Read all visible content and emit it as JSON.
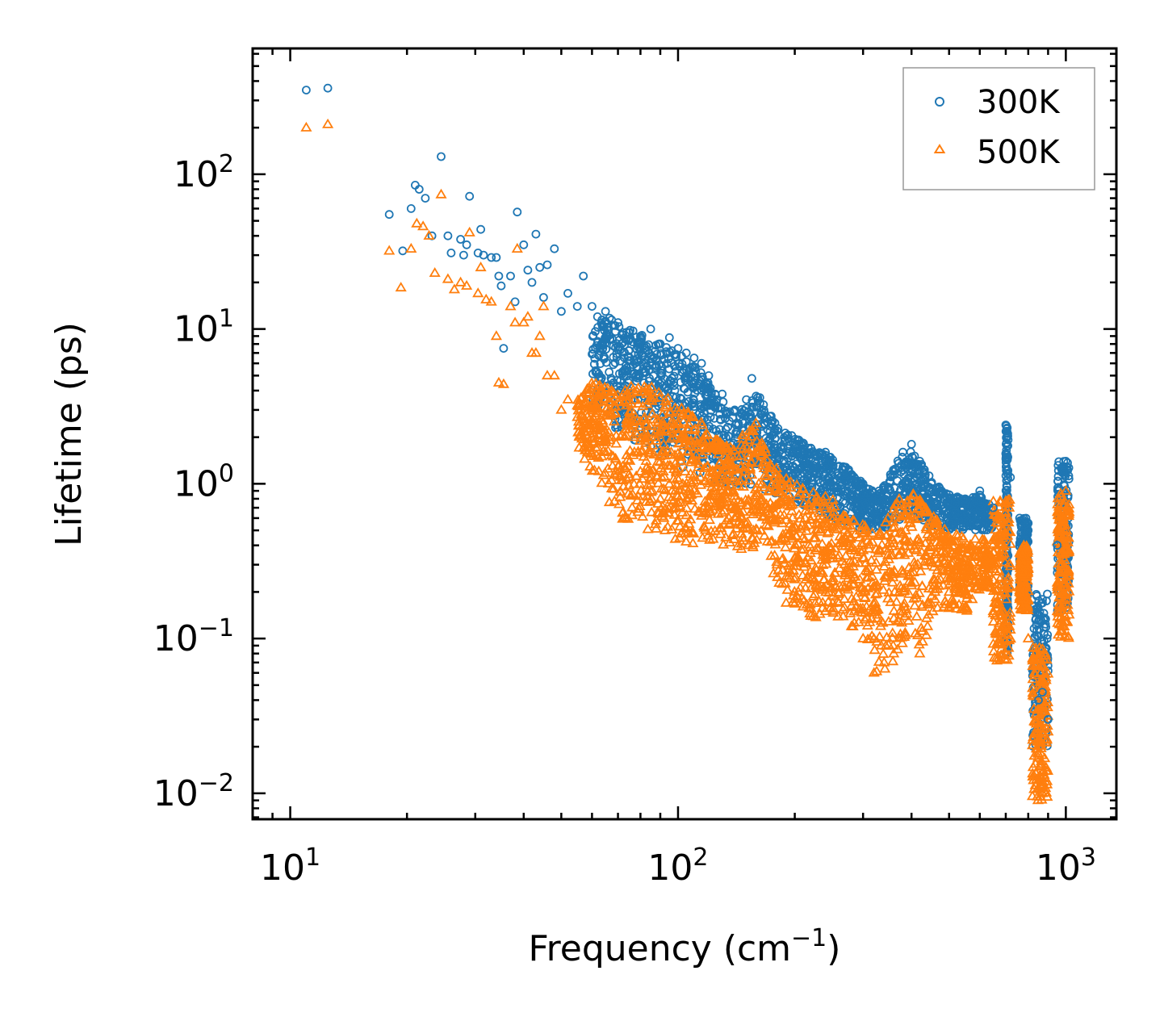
{
  "chart_data": {
    "type": "scatter",
    "title": "",
    "xlabel": "Frequency (cm",
    "xlabel_sup": "−1",
    "xlabel_close": ")",
    "ylabel": "Lifetime (ps)",
    "x_scale": "log",
    "y_scale": "log",
    "xlim": [
      8,
      1350
    ],
    "ylim": [
      0.0068,
      650
    ],
    "x_ticks": [
      {
        "value": 10,
        "base": "10",
        "exp": "1"
      },
      {
        "value": 100,
        "base": "10",
        "exp": "2"
      },
      {
        "value": 1000,
        "base": "10",
        "exp": "3"
      }
    ],
    "y_ticks": [
      {
        "value": 0.01,
        "base": "10",
        "exp": "−2"
      },
      {
        "value": 0.1,
        "base": "10",
        "exp": "−1"
      },
      {
        "value": 1,
        "base": "10",
        "exp": "0"
      },
      {
        "value": 10,
        "base": "10",
        "exp": "1"
      },
      {
        "value": 100,
        "base": "10",
        "exp": "2"
      }
    ],
    "legend_position": "top-right",
    "series": [
      {
        "name": "300K",
        "marker": "circle",
        "color": "#1f77b4",
        "points": [
          [
            11.0,
            350
          ],
          [
            12.5,
            360
          ],
          [
            18,
            55
          ],
          [
            19.5,
            32
          ],
          [
            20.5,
            60
          ],
          [
            21.0,
            85
          ],
          [
            21.5,
            80
          ],
          [
            22.3,
            70
          ],
          [
            23.2,
            40
          ],
          [
            24.5,
            130
          ],
          [
            25.5,
            40
          ],
          [
            26,
            31
          ],
          [
            27.5,
            38
          ],
          [
            28,
            30
          ],
          [
            28.5,
            35
          ],
          [
            29,
            72
          ],
          [
            30.5,
            31
          ],
          [
            31,
            44
          ],
          [
            31.5,
            30
          ],
          [
            33,
            29
          ],
          [
            34,
            29
          ],
          [
            34.5,
            22
          ],
          [
            35,
            19
          ],
          [
            35.5,
            7.5
          ],
          [
            37,
            22
          ],
          [
            38,
            15
          ],
          [
            38.5,
            57
          ],
          [
            40,
            35
          ],
          [
            41,
            24
          ],
          [
            42,
            20
          ],
          [
            43,
            41
          ],
          [
            44,
            25
          ],
          [
            45,
            16
          ],
          [
            46,
            26
          ],
          [
            48,
            33
          ],
          [
            50,
            13
          ],
          [
            52,
            17
          ],
          [
            55,
            14
          ],
          [
            57,
            22
          ],
          [
            60,
            14
          ],
          [
            62,
            12
          ],
          [
            65,
            13
          ],
          [
            70,
            11
          ],
          [
            75,
            9.5
          ],
          [
            80,
            9
          ],
          [
            85,
            10
          ],
          [
            90,
            8
          ],
          [
            95,
            8.8
          ],
          [
            100,
            7.5
          ],
          [
            105,
            7
          ],
          [
            110,
            6.5
          ],
          [
            115,
            6
          ],
          [
            120,
            5
          ],
          [
            130,
            3.8
          ],
          [
            140,
            3
          ],
          [
            150,
            3.5
          ],
          [
            155,
            4.8
          ],
          [
            160,
            3.2
          ],
          [
            170,
            2.5
          ],
          [
            180,
            2.2
          ],
          [
            200,
            1.8
          ],
          [
            220,
            1.7
          ],
          [
            240,
            1.6
          ],
          [
            260,
            1.3
          ],
          [
            280,
            1.15
          ],
          [
            300,
            1.0
          ],
          [
            330,
            0.9
          ],
          [
            360,
            1.2
          ],
          [
            380,
            1.6
          ],
          [
            400,
            1.8
          ],
          [
            420,
            1.4
          ],
          [
            450,
            1.0
          ],
          [
            500,
            0.85
          ],
          [
            550,
            0.8
          ],
          [
            600,
            0.9
          ],
          [
            650,
            0.7
          ],
          [
            700,
            2.4
          ],
          [
            720,
            1.1
          ],
          [
            760,
            0.6
          ],
          [
            800,
            0.5
          ],
          [
            830,
            0.1
          ],
          [
            850,
            0.04
          ],
          [
            870,
            0.045
          ],
          [
            900,
            0.03
          ],
          [
            950,
            0.4
          ],
          [
            1000,
            1.4
          ]
        ]
      },
      {
        "name": "500K",
        "marker": "triangle",
        "color": "#ff7f0e",
        "points": [
          [
            11.0,
            200
          ],
          [
            12.5,
            210
          ],
          [
            18,
            32
          ],
          [
            19.3,
            18.5
          ],
          [
            20.5,
            33
          ],
          [
            21.2,
            48
          ],
          [
            22,
            46
          ],
          [
            22.8,
            40
          ],
          [
            23.6,
            23
          ],
          [
            24.5,
            74
          ],
          [
            25.5,
            21
          ],
          [
            26.5,
            18
          ],
          [
            27.5,
            20
          ],
          [
            28.5,
            19
          ],
          [
            29,
            42
          ],
          [
            30.5,
            17
          ],
          [
            31,
            25
          ],
          [
            32,
            15.5
          ],
          [
            33,
            15
          ],
          [
            34,
            9
          ],
          [
            34.5,
            4.5
          ],
          [
            35.5,
            4.4
          ],
          [
            37,
            14
          ],
          [
            38,
            11
          ],
          [
            38.5,
            33
          ],
          [
            40,
            11
          ],
          [
            41,
            12
          ],
          [
            42,
            7
          ],
          [
            43,
            7
          ],
          [
            44,
            9
          ],
          [
            45,
            14
          ],
          [
            46,
            5
          ],
          [
            48,
            5
          ],
          [
            50,
            3
          ],
          [
            52,
            3.5
          ],
          [
            55,
            3.2
          ],
          [
            58,
            2.5
          ],
          [
            60,
            2
          ],
          [
            65,
            1.6
          ],
          [
            70,
            1.3
          ],
          [
            75,
            1.1
          ],
          [
            80,
            1.2
          ],
          [
            85,
            1.1
          ],
          [
            90,
            0.8
          ],
          [
            100,
            0.75
          ],
          [
            110,
            0.9
          ],
          [
            120,
            0.7
          ],
          [
            130,
            0.65
          ],
          [
            140,
            0.6
          ],
          [
            150,
            0.55
          ],
          [
            160,
            0.5
          ],
          [
            180,
            0.3
          ],
          [
            190,
            0.17
          ],
          [
            200,
            0.18
          ],
          [
            220,
            0.14
          ],
          [
            240,
            0.15
          ],
          [
            260,
            0.17
          ],
          [
            280,
            0.12
          ],
          [
            300,
            0.1
          ],
          [
            320,
            0.06
          ],
          [
            340,
            0.07
          ],
          [
            360,
            0.08
          ],
          [
            380,
            0.15
          ],
          [
            400,
            0.22
          ],
          [
            420,
            0.08
          ],
          [
            440,
            0.12
          ],
          [
            460,
            0.2
          ],
          [
            500,
            0.2
          ],
          [
            550,
            0.16
          ],
          [
            600,
            0.3
          ],
          [
            650,
            0.15
          ],
          [
            700,
            0.08
          ],
          [
            720,
            0.1
          ],
          [
            760,
            0.2
          ],
          [
            800,
            0.1
          ],
          [
            830,
            0.06
          ],
          [
            850,
            0.018
          ],
          [
            870,
            0.01
          ],
          [
            900,
            0.025
          ],
          [
            950,
            0.15
          ],
          [
            1000,
            0.9
          ]
        ]
      }
    ],
    "dense_band": {
      "300K": {
        "x": [
          60,
          70,
          80,
          90,
          100,
          110,
          120,
          130,
          140,
          150,
          160,
          170,
          180,
          200,
          220,
          250,
          280,
          300,
          330,
          360,
          390,
          420,
          460,
          500,
          550,
          600,
          650
        ],
        "upper": [
          14,
          11,
          9.5,
          8,
          7,
          6,
          4.5,
          3.5,
          3,
          3.2,
          4.2,
          3,
          2.4,
          2,
          1.7,
          1.5,
          1.2,
          1.0,
          0.85,
          1.3,
          1.7,
          1.4,
          1.0,
          0.85,
          0.8,
          0.85,
          0.7
        ],
        "lower": [
          3,
          2.2,
          1.8,
          1.5,
          1.3,
          1.2,
          1.1,
          1.0,
          0.95,
          0.9,
          0.9,
          0.85,
          0.8,
          0.75,
          0.7,
          0.6,
          0.55,
          0.5,
          0.5,
          0.55,
          0.6,
          0.55,
          0.5,
          0.5,
          0.5,
          0.5,
          0.5
        ]
      },
      "500K": {
        "x": [
          55,
          60,
          70,
          80,
          90,
          100,
          110,
          120,
          130,
          140,
          150,
          160,
          170,
          180,
          200,
          220,
          250,
          280,
          300,
          330,
          360,
          390,
          420,
          460,
          500,
          550,
          600,
          650
        ],
        "upper": [
          3.5,
          4.5,
          4.2,
          4.5,
          4,
          3.2,
          2.8,
          2.2,
          1.8,
          1.8,
          2.2,
          2.6,
          1.5,
          1.3,
          1.0,
          0.9,
          0.8,
          0.6,
          0.55,
          0.5,
          0.75,
          1.0,
          0.8,
          0.6,
          0.5,
          0.45,
          0.45,
          0.4
        ],
        "lower": [
          1.6,
          1.2,
          0.6,
          0.5,
          0.45,
          0.42,
          0.4,
          0.4,
          0.38,
          0.37,
          0.37,
          0.37,
          0.3,
          0.22,
          0.16,
          0.13,
          0.14,
          0.12,
          0.1,
          0.055,
          0.07,
          0.09,
          0.08,
          0.15,
          0.15,
          0.14,
          0.2,
          0.2
        ]
      }
    },
    "segments": {
      "300K": [
        {
          "x0": 700,
          "x1": 710,
          "ymin": 0.08,
          "ymax": 2.4
        },
        {
          "x0": 760,
          "x1": 800,
          "ymin": 0.18,
          "ymax": 0.6
        },
        {
          "x0": 820,
          "x1": 900,
          "ymin": 0.02,
          "ymax": 0.2
        },
        {
          "x0": 950,
          "x1": 1020,
          "ymin": 0.15,
          "ymax": 1.4
        }
      ],
      "500K": [
        {
          "x0": 650,
          "x1": 720,
          "ymin": 0.07,
          "ymax": 0.8
        },
        {
          "x0": 760,
          "x1": 800,
          "ymin": 0.15,
          "ymax": 0.4
        },
        {
          "x0": 820,
          "x1": 900,
          "ymin": 0.009,
          "ymax": 0.09
        },
        {
          "x0": 950,
          "x1": 1020,
          "ymin": 0.1,
          "ymax": 0.9
        }
      ]
    }
  }
}
